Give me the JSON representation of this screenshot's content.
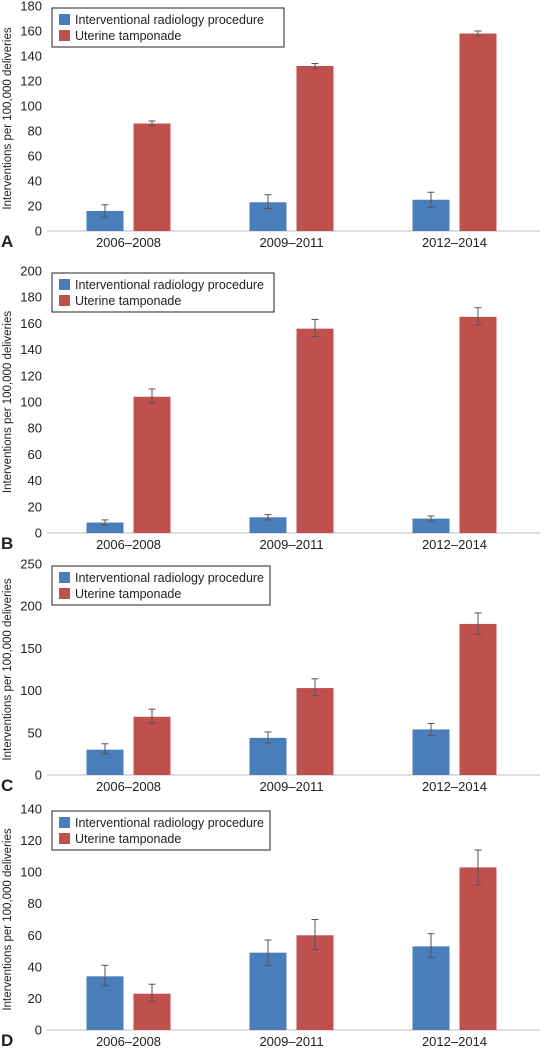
{
  "chart_data": [
    {
      "panel": "A",
      "type": "bar",
      "categories": [
        "2006–2008",
        "2009–2011",
        "2012–2014"
      ],
      "ylabel": "Interventions per 100,000 deliveries",
      "ylim": [
        0,
        180
      ],
      "yticks": [
        0,
        20,
        40,
        60,
        80,
        100,
        120,
        140,
        160,
        180
      ],
      "legend": "top-left",
      "series": [
        {
          "name": "Interventional radiology procedure",
          "color": "#4a7ebb",
          "values": [
            16,
            23,
            25
          ],
          "err_low": [
            11,
            18,
            19
          ],
          "err_high": [
            21,
            29,
            31
          ]
        },
        {
          "name": "Uterine tamponade",
          "color": "#c0504d",
          "values": [
            86,
            132,
            158
          ],
          "err_low": [
            84,
            130,
            156
          ],
          "err_high": [
            88,
            134,
            160
          ]
        }
      ]
    },
    {
      "panel": "B",
      "type": "bar",
      "categories": [
        "2006–2008",
        "2009–2011",
        "2012–2014"
      ],
      "ylabel": "Interventions per 100,000 deliveries",
      "ylim": [
        0,
        200
      ],
      "yticks": [
        0,
        20,
        40,
        60,
        80,
        100,
        120,
        140,
        160,
        180,
        200
      ],
      "legend": "top-left",
      "series": [
        {
          "name": "Interventional radiology procedure",
          "color": "#4a7ebb",
          "values": [
            8,
            12,
            11
          ],
          "err_low": [
            6,
            10,
            9
          ],
          "err_high": [
            10,
            14,
            13
          ]
        },
        {
          "name": "Uterine tamponade",
          "color": "#c0504d",
          "values": [
            104,
            156,
            165
          ],
          "err_low": [
            99,
            150,
            159
          ],
          "err_high": [
            110,
            163,
            172
          ]
        }
      ]
    },
    {
      "panel": "C",
      "type": "bar",
      "categories": [
        "2006–2008",
        "2009–2011",
        "2012–2014"
      ],
      "ylabel": "Interventions per 100,000 deliveries",
      "ylim": [
        0,
        250
      ],
      "yticks": [
        0,
        50,
        100,
        150,
        200,
        250
      ],
      "legend": "top-left",
      "series": [
        {
          "name": "Interventional radiology procedure",
          "color": "#4a7ebb",
          "values": [
            30,
            44,
            54
          ],
          "err_low": [
            25,
            38,
            47
          ],
          "err_high": [
            37,
            51,
            61
          ]
        },
        {
          "name": "Uterine tamponade",
          "color": "#c0504d",
          "values": [
            69,
            103,
            179
          ],
          "err_low": [
            61,
            94,
            167
          ],
          "err_high": [
            78,
            114,
            192
          ]
        }
      ]
    },
    {
      "panel": "D",
      "type": "bar",
      "categories": [
        "2006–2008",
        "2009–2011",
        "2012–2014"
      ],
      "ylabel": "Interventions per 100,000 deliveries",
      "ylim": [
        0,
        140
      ],
      "yticks": [
        0,
        20,
        40,
        60,
        80,
        100,
        120,
        140
      ],
      "legend": "top-left",
      "series": [
        {
          "name": "Interventional radiology procedure",
          "color": "#4a7ebb",
          "values": [
            34,
            49,
            53
          ],
          "err_low": [
            28,
            41,
            46
          ],
          "err_high": [
            41,
            57,
            61
          ]
        },
        {
          "name": "Uterine tamponade",
          "color": "#c0504d",
          "values": [
            23,
            60,
            103
          ],
          "err_low": [
            18,
            51,
            92
          ],
          "err_high": [
            29,
            70,
            114
          ]
        }
      ]
    }
  ]
}
